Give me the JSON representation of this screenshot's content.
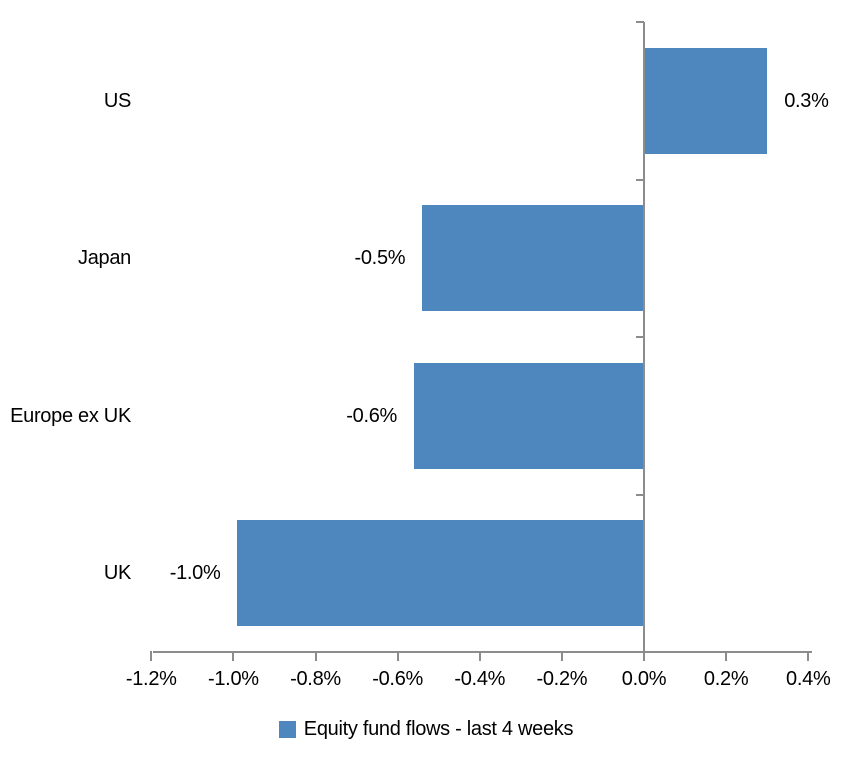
{
  "chart_data": {
    "type": "bar",
    "orientation": "horizontal",
    "title": "",
    "xlabel": "",
    "ylabel": "",
    "categories": [
      "US",
      "Japan",
      "Europe ex UK",
      "UK"
    ],
    "values": [
      0.3,
      -0.5,
      -0.6,
      -1.0
    ],
    "values_precise": [
      0.3,
      -0.54,
      -0.56,
      -0.99
    ],
    "data_labels": [
      "0.3%",
      "-0.5%",
      "-0.6%",
      "-1.0%"
    ],
    "xlim": [
      -1.2,
      0.4
    ],
    "x_tick_values": [
      -1.2,
      -1.0,
      -0.8,
      -0.6,
      -0.4,
      -0.2,
      0.0,
      0.2,
      0.4
    ],
    "x_tick_labels": [
      "-1.2%",
      "-1.0%",
      "-0.8%",
      "-0.6%",
      "-0.4%",
      "-0.2%",
      "0.0%",
      "0.2%",
      "0.4%"
    ],
    "grid": "off",
    "legend": {
      "position": "bottom-center",
      "entries": [
        {
          "label": "Equity fund flows - last 4 weeks",
          "marker_color": "#4E87BE"
        }
      ]
    }
  },
  "colors": {
    "bar": "#4E87BE",
    "axis": "#8C8C8C",
    "text": "#000000",
    "background": "#FFFFFF"
  }
}
